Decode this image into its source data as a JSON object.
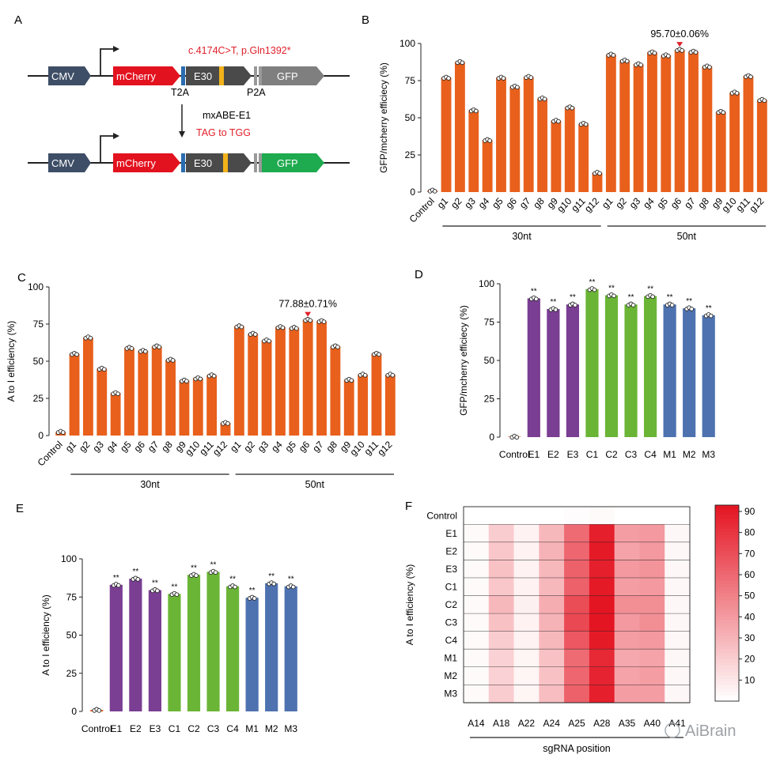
{
  "panels": {
    "A": {
      "letter": "A",
      "mutation": "c.4174C>T, p.Gln1392*",
      "editor": "mxABE-E1",
      "conversion": "TAG to TGG",
      "t2a": "T2A",
      "p2a": "P2A",
      "boxes": {
        "cmv": "CMV",
        "mcherry": "mCherry",
        "e30": "E30",
        "gfp": "GFP"
      }
    },
    "B": {
      "letter": "B"
    },
    "C": {
      "letter": "C"
    },
    "D": {
      "letter": "D"
    },
    "E": {
      "letter": "E"
    },
    "F": {
      "letter": "F"
    }
  },
  "watermark": "AiBrain",
  "colors": {
    "orange": "#E8601C",
    "purple": "#7A3E93",
    "green": "#6BB536",
    "blue": "#4E72B0",
    "red_label": "#E0202A",
    "cmv_box": "#3E4E66",
    "mcherry_box": "#E3121F",
    "gfp_gray": "#7F7F7F",
    "gfp_green": "#1EAA4E",
    "e30_box": "#4A4A4A",
    "t2a_bar": "#2B6CB0",
    "e30_yellow": "#F2B21A"
  },
  "chart_data": [
    {
      "panel": "B",
      "type": "bar",
      "ylabel": "GFP/mcherry efficiecy (%)",
      "ylim": [
        0,
        100
      ],
      "yticks": [
        0,
        25,
        50,
        75,
        100
      ],
      "categories": [
        "Control",
        "g1",
        "g2",
        "g3",
        "g4",
        "g5",
        "g6",
        "g7",
        "g8",
        "g9",
        "g10",
        "g11",
        "g12",
        "g1",
        "g2",
        "g3",
        "g4",
        "g5",
        "g6",
        "g7",
        "g8",
        "g9",
        "g10",
        "g11",
        "g12"
      ],
      "values": [
        1,
        77,
        87.5,
        55,
        35,
        77,
        71,
        77.5,
        63,
        48,
        57,
        46,
        13,
        92.5,
        88.5,
        86,
        94,
        92,
        95.7,
        94.5,
        84.5,
        54,
        67,
        78,
        62
      ],
      "groups": [
        {
          "label": "30nt",
          "from": 1,
          "to": 12
        },
        {
          "label": "50nt",
          "from": 13,
          "to": 24
        }
      ],
      "annotation": {
        "text": "95.70±0.06%",
        "index": 18
      },
      "color": "orange"
    },
    {
      "panel": "C",
      "type": "bar",
      "ylabel": "A to I efficiency (%)",
      "ylim": [
        0,
        100
      ],
      "yticks": [
        0,
        25,
        50,
        75,
        100
      ],
      "categories": [
        "Control",
        "g1",
        "g2",
        "g3",
        "g4",
        "g5",
        "g6",
        "g7",
        "g8",
        "g9",
        "g10",
        "g11",
        "g12",
        "g1",
        "g2",
        "g3",
        "g4",
        "g5",
        "g6",
        "g7",
        "g8",
        "g9",
        "g10",
        "g11",
        "g12"
      ],
      "values": [
        2.5,
        55,
        66,
        45,
        28.5,
        59,
        57,
        60,
        51,
        37,
        38.5,
        40.5,
        8.5,
        73.5,
        68.5,
        64,
        73,
        72.5,
        77.88,
        77,
        60,
        37.5,
        41,
        55,
        41
      ],
      "groups": [
        {
          "label": "30nt",
          "from": 1,
          "to": 12
        },
        {
          "label": "50nt",
          "from": 13,
          "to": 24
        }
      ],
      "annotation": {
        "text": "77.88±0.71%",
        "index": 18
      },
      "color": "orange"
    },
    {
      "panel": "D",
      "type": "bar",
      "ylabel": "GFP/mcherry efficiecy (%)",
      "ylim": [
        0,
        100
      ],
      "yticks": [
        0,
        25,
        50,
        75,
        100
      ],
      "categories": [
        "Control",
        "E1",
        "E2",
        "E3",
        "C1",
        "C2",
        "C3",
        "C4",
        "M1",
        "M2",
        "M3"
      ],
      "values": [
        0.3,
        90.5,
        83.5,
        86.5,
        96.5,
        92.5,
        86.5,
        92,
        86.5,
        84,
        79.5
      ],
      "significance": [
        "",
        "**",
        "**",
        "**",
        "**",
        "**",
        "**",
        "**",
        "**",
        "**",
        "**"
      ],
      "bar_colors": [
        "orange",
        "purple",
        "purple",
        "purple",
        "green",
        "green",
        "green",
        "green",
        "blue",
        "blue",
        "blue"
      ]
    },
    {
      "panel": "E",
      "type": "bar",
      "ylabel": "A to I efficiency (%)",
      "ylim": [
        0,
        100
      ],
      "yticks": [
        0,
        25,
        50,
        75,
        100
      ],
      "categories": [
        "Control",
        "E1",
        "E2",
        "E3",
        "C1",
        "C2",
        "C3",
        "C4",
        "M1",
        "M2",
        "M3"
      ],
      "values": [
        1,
        83,
        87,
        79.5,
        77,
        89.5,
        91.5,
        82,
        74.5,
        84,
        82
      ],
      "significance": [
        "",
        "**",
        "**",
        "**",
        "**",
        "**",
        "**",
        "**",
        "**",
        "**",
        "**"
      ],
      "bar_colors": [
        "orange",
        "purple",
        "purple",
        "purple",
        "green",
        "green",
        "green",
        "green",
        "blue",
        "blue",
        "blue"
      ]
    },
    {
      "panel": "F",
      "type": "heatmap",
      "ylabel": "A to I efficiency (%)",
      "xlabel": "sgRNA position",
      "rows": [
        "Control",
        "E1",
        "E2",
        "E3",
        "C1",
        "C2",
        "C3",
        "C4",
        "M1",
        "M2",
        "M3"
      ],
      "columns": [
        "A14",
        "A18",
        "A22",
        "A24",
        "A25",
        "A28",
        "A35",
        "A40",
        "A41"
      ],
      "values": [
        [
          0,
          0,
          0,
          0,
          1,
          2,
          0,
          0,
          0
        ],
        [
          2,
          20,
          5,
          28,
          58,
          88,
          38,
          40,
          3
        ],
        [
          2,
          22,
          5,
          30,
          60,
          90,
          36,
          40,
          3
        ],
        [
          2,
          24,
          5,
          28,
          62,
          88,
          40,
          42,
          3
        ],
        [
          2,
          22,
          5,
          28,
          62,
          90,
          38,
          40,
          3
        ],
        [
          2,
          28,
          6,
          32,
          70,
          92,
          44,
          44,
          3
        ],
        [
          2,
          24,
          5,
          30,
          72,
          92,
          40,
          44,
          3
        ],
        [
          2,
          20,
          5,
          28,
          66,
          90,
          38,
          40,
          3
        ],
        [
          2,
          18,
          4,
          24,
          58,
          84,
          34,
          36,
          3
        ],
        [
          2,
          18,
          4,
          24,
          60,
          86,
          36,
          38,
          3
        ],
        [
          2,
          20,
          4,
          26,
          62,
          88,
          38,
          38,
          3
        ]
      ],
      "colorbar": {
        "min": 0,
        "max": 93,
        "ticks": [
          10,
          20,
          30,
          40,
          50,
          60,
          70,
          80,
          90
        ]
      }
    }
  ]
}
